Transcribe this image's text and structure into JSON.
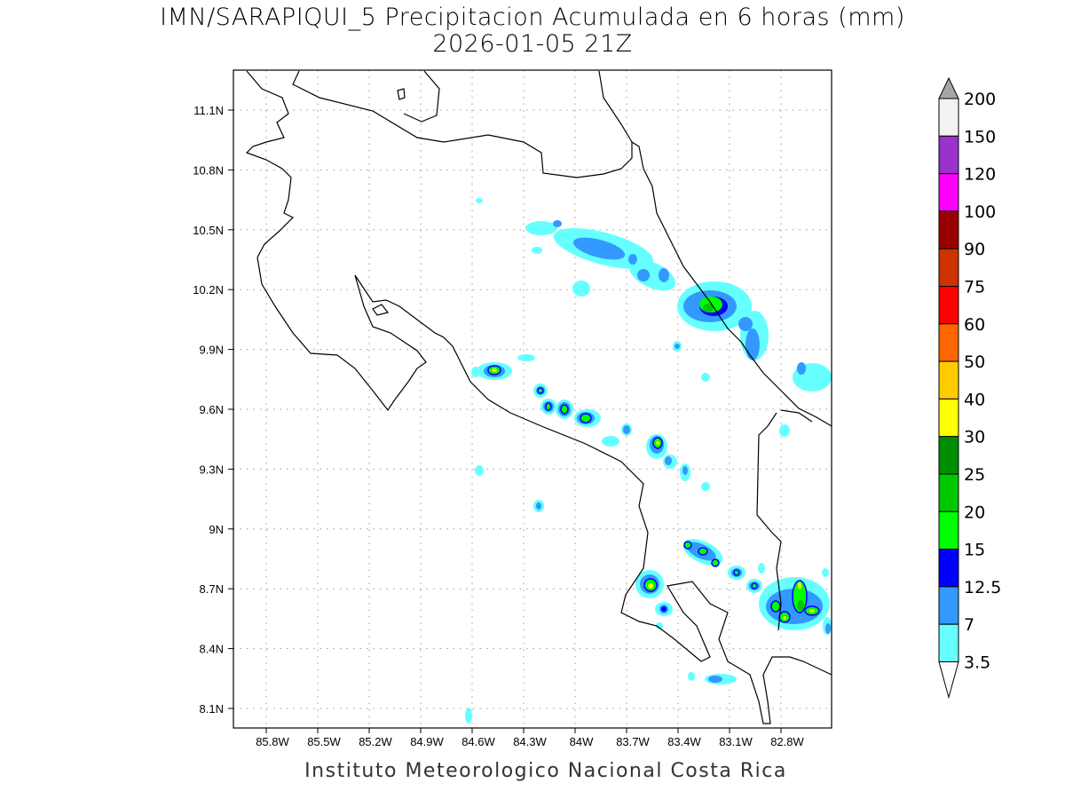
{
  "title": "IMN/SARAPIQUI_5 Precipitacion Acumulada en 6 horas (mm)",
  "subtitle": "2026-01-05 21Z",
  "footer": "Instituto Meteorologico Nacional Costa Rica",
  "x_ticks": [
    "85.8W",
    "85.5W",
    "85.2W",
    "84.9W",
    "84.6W",
    "84.3W",
    "84W",
    "83.7W",
    "83.4W",
    "83.1W",
    "82.8W"
  ],
  "y_ticks": [
    "11.1N",
    "10.8N",
    "10.5N",
    "10.2N",
    "9.9N",
    "9.6N",
    "9.3N",
    "9N",
    "8.7N",
    "8.4N",
    "8.1N"
  ],
  "colorbar": {
    "levels": [
      "200",
      "150",
      "120",
      "100",
      "90",
      "75",
      "60",
      "50",
      "40",
      "30",
      "25",
      "20",
      "15",
      "12.5",
      "7",
      "3.5"
    ],
    "colors": [
      "#f2f2f2",
      "#9933cc",
      "#ff00ff",
      "#990000",
      "#cc3300",
      "#ff0000",
      "#ff6600",
      "#ffcc00",
      "#ffff00",
      "#008f00",
      "#00c800",
      "#00ff00",
      "#0000ff",
      "#3399ff",
      "#66ffff"
    ],
    "over_color": "#a6a6a6",
    "under_color": "#ffffff"
  }
}
